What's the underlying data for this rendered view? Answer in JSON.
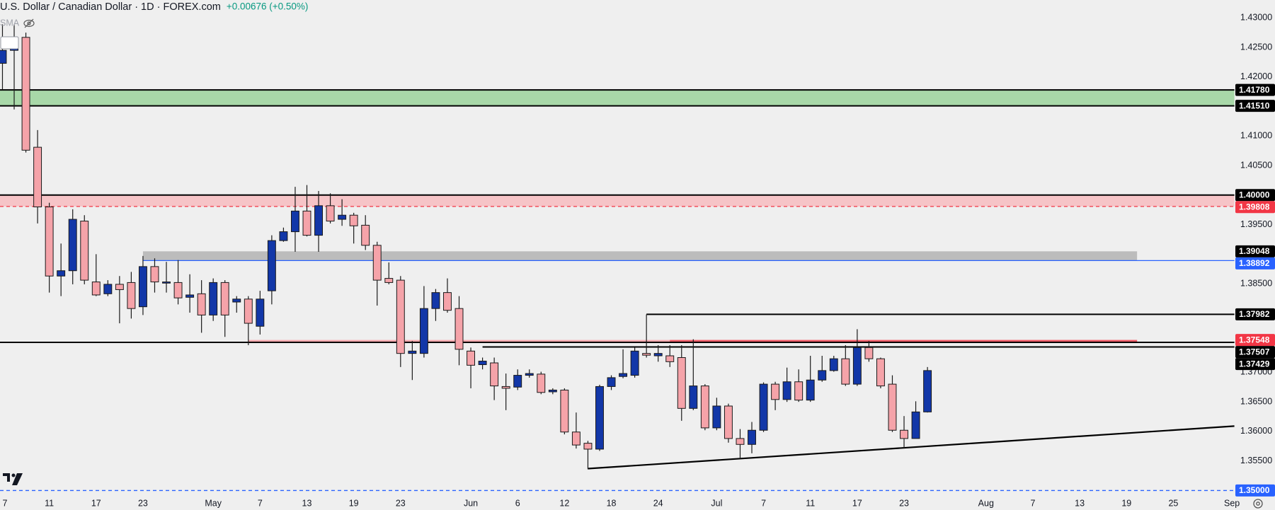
{
  "chart_data": {
    "type": "candlestick",
    "title": "U.S. Dollar / Canadian Dollar · 1D · FOREX.com",
    "change": "+0.00676 (+0.50%)",
    "indicator": "SMA",
    "categories": [
      "7",
      null,
      null,
      null,
      "11",
      null,
      null,
      null,
      "17",
      null,
      null,
      null,
      "23",
      null,
      null,
      null,
      null,
      null,
      "May",
      null,
      null,
      null,
      "7",
      null,
      null,
      null,
      "13",
      null,
      null,
      null,
      "19",
      null,
      null,
      null,
      "23",
      null,
      null,
      null,
      null,
      null,
      "Jun",
      null,
      null,
      null,
      "6",
      null,
      null,
      null,
      "12",
      null,
      null,
      null,
      "18",
      null,
      null,
      null,
      "24",
      null,
      null,
      null,
      null,
      "Jul",
      null,
      null,
      null,
      "7",
      null,
      null,
      null,
      "11",
      null,
      null,
      null,
      "17",
      null,
      null,
      null,
      "23",
      null,
      null,
      null,
      null,
      null,
      null,
      "Aug",
      null,
      null,
      null,
      "7",
      null,
      null,
      null,
      "13",
      null,
      null,
      null,
      "19",
      null,
      null,
      null,
      "25",
      null,
      null,
      null,
      null,
      "Sep"
    ],
    "open": [
      1.4223,
      1.4245,
      1.4267,
      1.4081,
      1.398,
      1.3863,
      1.3872,
      1.3956,
      1.3853,
      1.3833,
      1.3849,
      1.3852,
      1.3811,
      1.3879,
      1.3851,
      1.3852,
      1.3827,
      1.3833,
      1.3797,
      1.3852,
      1.3819,
      1.3824,
      1.3778,
      1.3838,
      1.3923,
      1.3938,
      1.3973,
      1.3932,
      1.3982,
      1.3959,
      1.3966,
      1.3949,
      1.3915,
      1.3859,
      1.3856,
      1.3732,
      1.3732,
      1.3808,
      1.3835,
      1.3808,
      1.3736,
      1.3713,
      1.3716,
      1.3676,
      1.3675,
      1.3695,
      1.3697,
      1.3667,
      1.367,
      1.3599,
      1.358,
      1.357,
      1.3676,
      1.3693,
      1.3695,
      1.3732,
      1.3728,
      1.3728,
      1.3725,
      1.3639,
      1.3677,
      1.3606,
      1.3643,
      1.3588,
      1.3578,
      1.3602,
      1.368,
      1.3654,
      1.3684,
      1.3653,
      1.3687,
      1.3703,
      1.3723,
      1.368,
      1.3742,
      1.3723,
      1.368,
      1.3602,
      1.3588,
      1.3633,
      null,
      null,
      null,
      null,
      null,
      null,
      null,
      null,
      null,
      null,
      null,
      null,
      null,
      null,
      null,
      null,
      null,
      null,
      null,
      null,
      null,
      null,
      null,
      null,
      null,
      null
    ],
    "high": [
      1.4289,
      1.4289,
      1.4275,
      1.411,
      1.3987,
      1.3918,
      1.3976,
      1.3966,
      1.39,
      1.3856,
      1.3863,
      1.387,
      1.3897,
      1.3893,
      1.3887,
      1.389,
      1.3866,
      1.3856,
      1.3859,
      1.3856,
      1.3829,
      1.3829,
      1.3838,
      1.3932,
      1.3945,
      1.4014,
      1.4017,
      1.4007,
      1.4003,
      1.3993,
      1.397,
      1.3966,
      1.3921,
      1.3886,
      1.3863,
      1.3753,
      1.3846,
      1.3841,
      1.3859,
      1.3829,
      1.3742,
      1.3725,
      1.3725,
      1.3698,
      1.3705,
      1.3705,
      1.3701,
      1.3673,
      1.3673,
      1.3632,
      1.3584,
      1.3679,
      1.3695,
      1.3739,
      1.3742,
      1.3798,
      1.3746,
      1.3746,
      1.3746,
      1.3756,
      1.368,
      1.3657,
      1.3647,
      1.3604,
      1.3616,
      1.3683,
      1.3684,
      1.3708,
      1.3705,
      1.3728,
      1.3728,
      1.3728,
      1.3746,
      1.3773,
      1.3753,
      1.3725,
      1.3695,
      1.3626,
      1.3651,
      1.3709,
      null,
      null,
      null,
      null,
      null,
      null,
      null,
      null,
      null,
      null,
      null,
      null,
      null,
      null,
      null,
      null,
      null,
      null,
      null,
      null,
      null,
      null,
      null,
      null,
      null,
      null
    ],
    "low": [
      1.4179,
      1.4145,
      1.4072,
      1.3952,
      1.3835,
      1.3829,
      1.3849,
      1.3849,
      1.3829,
      1.3829,
      1.3783,
      1.3791,
      1.3797,
      1.3835,
      1.3835,
      1.3815,
      1.3801,
      1.3767,
      1.3787,
      1.376,
      1.3801,
      1.3746,
      1.3764,
      1.3815,
      1.3921,
      1.3904,
      1.393,
      1.3904,
      1.3952,
      1.3948,
      1.3918,
      1.3907,
      1.3813,
      1.3849,
      1.3709,
      1.3687,
      1.3725,
      1.3787,
      1.3801,
      1.3712,
      1.3673,
      1.3705,
      1.3653,
      1.3636,
      1.367,
      1.3691,
      1.3663,
      1.3663,
      1.3595,
      1.3571,
      1.3536,
      1.3567,
      1.367,
      1.369,
      1.3691,
      1.3725,
      1.3718,
      1.3709,
      1.3618,
      1.3636,
      1.3602,
      1.3602,
      1.3581,
      1.3554,
      1.3563,
      1.3599,
      1.3636,
      1.365,
      1.365,
      1.365,
      1.3684,
      1.3701,
      1.3677,
      1.3677,
      1.3718,
      1.3673,
      1.3599,
      1.3571,
      1.3588,
      1.3632,
      null,
      null,
      null,
      null,
      null,
      null,
      null,
      null,
      null,
      null,
      null,
      null,
      null,
      null,
      null,
      null,
      null,
      null,
      null,
      null,
      null,
      null,
      null,
      null,
      null,
      null
    ],
    "close": [
      1.4245,
      1.4264,
      1.4076,
      1.398,
      1.3863,
      1.3872,
      1.3959,
      1.3856,
      1.3831,
      1.3849,
      1.384,
      1.3808,
      1.3879,
      1.3853,
      1.3853,
      1.3826,
      1.3831,
      1.3797,
      1.3852,
      1.3797,
      1.3824,
      1.3783,
      1.3824,
      1.3923,
      1.3938,
      1.3973,
      1.3932,
      1.3982,
      1.3956,
      1.3966,
      1.3948,
      1.3915,
      1.3856,
      1.3852,
      1.3732,
      1.3736,
      1.3808,
      1.3835,
      1.3805,
      1.3739,
      1.3712,
      1.3719,
      1.3677,
      1.3673,
      1.3695,
      1.3698,
      1.3666,
      1.367,
      1.3599,
      1.3577,
      1.357,
      1.3676,
      1.3691,
      1.3698,
      1.3736,
      1.3729,
      1.3732,
      1.3718,
      1.3639,
      1.3677,
      1.3606,
      1.3643,
      1.3588,
      1.3578,
      1.3602,
      1.368,
      1.3654,
      1.3684,
      1.3653,
      1.3687,
      1.3703,
      1.3723,
      1.368,
      1.3742,
      1.3723,
      1.3677,
      1.3602,
      1.3588,
      1.3633,
      1.3703,
      null,
      null,
      null,
      null,
      null,
      null,
      null,
      null,
      null,
      null,
      null,
      null,
      null,
      null,
      null,
      null,
      null,
      null,
      null,
      null,
      null,
      null,
      null,
      null,
      null,
      null
    ],
    "up_color": "#1237a8",
    "down_color": "#f5a3a9",
    "wick_color": "#1a1a1a",
    "xlim": [
      -0.21,
      105.21
    ],
    "ylim": [
      1.3467,
      1.43302
    ],
    "grid": false,
    "yticks": [
      {
        "value": 1.43,
        "label": "1.43000"
      },
      {
        "value": 1.425,
        "label": "1.42500"
      },
      {
        "value": 1.42,
        "label": "1.42000"
      },
      {
        "value": 1.41,
        "label": "1.41000"
      },
      {
        "value": 1.405,
        "label": "1.40500"
      },
      {
        "value": 1.395,
        "label": "1.39500"
      },
      {
        "value": 1.385,
        "label": "1.38500"
      },
      {
        "value": 1.37,
        "label": "1.37000"
      },
      {
        "value": 1.365,
        "label": "1.36500"
      },
      {
        "value": 1.36,
        "label": "1.36000"
      },
      {
        "value": 1.355,
        "label": "1.35500"
      }
    ],
    "zones": [
      {
        "from": 1.4151,
        "to": 1.4178,
        "color": "#a8d8a8"
      },
      {
        "from": 1.39808,
        "to": 1.4,
        "color": "#f6c4c7"
      },
      {
        "from": 1.38892,
        "to": 1.39048,
        "color": "#bcbcbc",
        "start": 12,
        "end": 96.9
      },
      {
        "from": 1.37507,
        "to": 1.37548,
        "color": "#f6a9ae",
        "start": 21,
        "end": 96.9
      },
      {
        "from": 1.37507,
        "to": 1.37548,
        "color": "#ef5a66",
        "start": 57,
        "end": 96.9
      }
    ],
    "levels": [
      {
        "value": 1.4178,
        "label": "1.41780",
        "color": "#000000",
        "style": "solid"
      },
      {
        "value": 1.4151,
        "label": "1.41510",
        "color": "#000000",
        "style": "solid"
      },
      {
        "value": 1.4,
        "label": "1.40000",
        "color": "#000000",
        "style": "solid"
      },
      {
        "value": 1.39808,
        "label": "1.39808",
        "color": "#f23645",
        "style": "dashed"
      },
      {
        "value": 1.39048,
        "label": "1.39048",
        "color": "#000000",
        "style": "none"
      },
      {
        "value": 1.38892,
        "label": "1.38892",
        "color": "#2962ff",
        "style": "solid",
        "start": 12
      },
      {
        "value": 1.37982,
        "label": "1.37982",
        "color": "#000000",
        "style": "solid",
        "start": 55
      },
      {
        "value": 1.37548,
        "label": "1.37548",
        "color": "#f23645",
        "style": "none"
      },
      {
        "value": 1.37507,
        "label": "1.37507",
        "color": "#000000",
        "style": "solid"
      },
      {
        "value": 1.37429,
        "label": "1.37429",
        "color": "#000000",
        "style": "solid",
        "start": 41
      },
      {
        "value": 1.35,
        "label": "1.35000",
        "color": "#2962ff",
        "style": "dashed"
      }
    ],
    "trendline": {
      "x": [
        50,
        105.21
      ],
      "y": [
        1.3537,
        1.3609
      ],
      "color": "#000000"
    }
  }
}
